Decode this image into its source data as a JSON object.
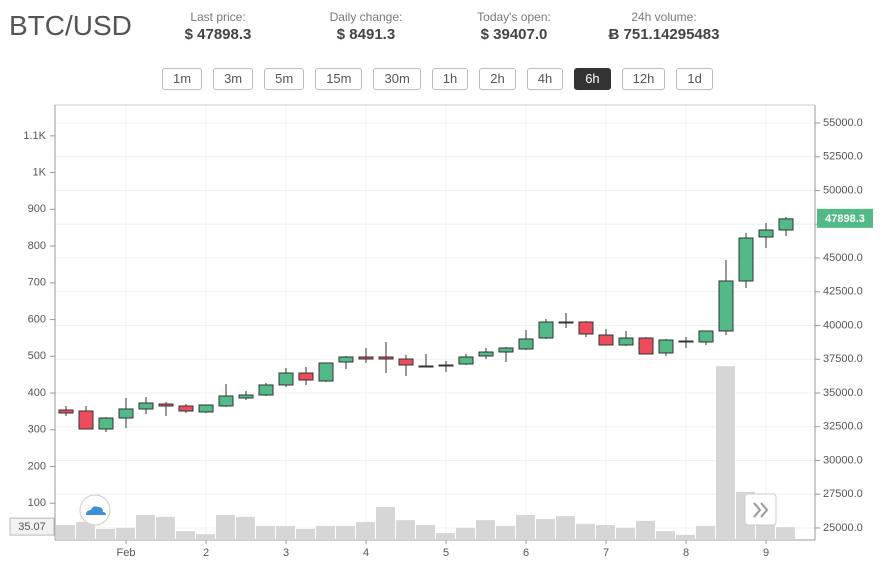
{
  "header": {
    "symbol": "BTC/USD",
    "stats": [
      {
        "label": "Last price:",
        "value": "$ 47898.3"
      },
      {
        "label": "Daily change:",
        "value": "$ 8491.3"
      },
      {
        "label": "Today's open:",
        "value": "$ 39407.0"
      },
      {
        "label": "24h volume:",
        "value": "Ƀ 751.14295483"
      }
    ]
  },
  "intervals": [
    "1m",
    "3m",
    "5m",
    "15m",
    "30m",
    "1h",
    "2h",
    "4h",
    "6h",
    "12h",
    "1d"
  ],
  "active_interval": "6h",
  "chart_data": {
    "type": "candlestick",
    "categories": [
      null,
      null,
      null,
      "Feb",
      null,
      null,
      null,
      "2",
      null,
      null,
      null,
      "3",
      null,
      null,
      null,
      "4",
      null,
      null,
      null,
      "5",
      null,
      null,
      null,
      "6",
      null,
      null,
      null,
      "7",
      null,
      null,
      null,
      "8",
      null,
      null,
      null,
      "9",
      null
    ],
    "open": [
      33741,
      33667,
      32333,
      33148,
      33815,
      34185,
      34037,
      33593,
      34037,
      34630,
      34852,
      35593,
      36481,
      35889,
      37296,
      37667,
      37667,
      37519,
      37000,
      37074,
      37148,
      37741,
      38037,
      38259,
      39074,
      40259,
      40259,
      39296,
      38556,
      39074,
      37963,
      38852,
      38778,
      39593,
      43296,
      46556,
      47074
    ],
    "high": [
      34037,
      34037,
      33222,
      34630,
      34704,
      34333,
      34185,
      34111,
      35667,
      35148,
      35741,
      36852,
      36926,
      37222,
      37741,
      38333,
      38778,
      37815,
      37889,
      37370,
      37889,
      38333,
      38407,
      39667,
      40481,
      40926,
      40333,
      39741,
      39593,
      39148,
      39000,
      39148,
      39444,
      44852,
      46852,
      47593,
      48040
    ],
    "low": [
      33296,
      32333,
      32111,
      32407,
      33444,
      33296,
      33519,
      33519,
      33963,
      34481,
      34778,
      35444,
      35593,
      35815,
      36778,
      37222,
      36481,
      36259,
      37000,
      36556,
      37074,
      37519,
      37296,
      38185,
      39000,
      39815,
      39148,
      38630,
      38481,
      37889,
      37741,
      38333,
      38556,
      39296,
      42778,
      45741,
      46630
    ],
    "close": [
      33519,
      32333,
      33148,
      33815,
      34259,
      34037,
      33667,
      34111,
      34778,
      34852,
      35593,
      36481,
      35963,
      37222,
      37667,
      37519,
      37519,
      37074,
      37000,
      37037,
      37667,
      38037,
      38333,
      39000,
      40259,
      40185,
      39370,
      38556,
      39074,
      37889,
      38926,
      38778,
      39593,
      43296,
      46481,
      47074,
      47898.3
    ],
    "up_color": "#53b987",
    "down_color": "#eb4d5c",
    "wick_color": "#333333",
    "ylim": [
      24111,
      56333
    ],
    "yticks": [
      {
        "value": 25000,
        "label": "25000.0"
      },
      {
        "value": 27500,
        "label": "27500.0"
      },
      {
        "value": 30000,
        "label": "30000.0"
      },
      {
        "value": 32500,
        "label": "32500.0"
      },
      {
        "value": 35000,
        "label": "35000.0"
      },
      {
        "value": 37500,
        "label": "37500.0"
      },
      {
        "value": 40000,
        "label": "40000.0"
      },
      {
        "value": 42500,
        "label": "42500.0"
      },
      {
        "value": 45000,
        "label": "45000.0"
      },
      {
        "value": 47500,
        "label": "47500.0"
      },
      {
        "value": 50000,
        "label": "50000.0"
      },
      {
        "value": 52500,
        "label": "52500.0"
      },
      {
        "value": 55000,
        "label": "55000.0"
      }
    ],
    "grid": true,
    "volume": {
      "color": "#d6d6d6",
      "values": [
        41,
        49,
        30,
        33,
        68,
        63,
        24,
        16,
        68,
        63,
        38,
        38,
        30,
        38,
        38,
        49,
        90,
        54,
        41,
        19,
        33,
        54,
        38,
        68,
        57,
        65,
        44,
        41,
        33,
        52,
        24,
        14,
        38,
        473,
        131,
        87,
        35.07
      ],
      "ylim": [
        0,
        1184
      ],
      "yticks": [
        100,
        200,
        300,
        400,
        500,
        600,
        700,
        800,
        900,
        {
          "value": 1000,
          "label": "1K"
        },
        {
          "value": 1100,
          "label": "1.1K"
        }
      ]
    }
  }
}
